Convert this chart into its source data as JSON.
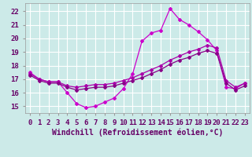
{
  "background_color": "#cceae8",
  "grid_color": "#ffffff",
  "xlabel": "Windchill (Refroidissement éolien,°C)",
  "ylabel_ticks": [
    15,
    16,
    17,
    18,
    19,
    20,
    21,
    22
  ],
  "xticks": [
    0,
    1,
    2,
    3,
    4,
    5,
    6,
    7,
    8,
    9,
    10,
    11,
    12,
    13,
    14,
    15,
    16,
    17,
    18,
    19,
    20,
    21,
    22,
    23
  ],
  "xlim": [
    -0.5,
    23.5
  ],
  "ylim": [
    14.5,
    22.6
  ],
  "s1": [
    17.5,
    17.0,
    16.8,
    16.8,
    16.0,
    15.2,
    14.9,
    15.0,
    15.3,
    15.6,
    16.3,
    17.4,
    19.8,
    20.4,
    20.6,
    22.2,
    21.4,
    21.0,
    20.5,
    19.9,
    19.1,
    16.4,
    16.3,
    16.7
  ],
  "s2": [
    17.4,
    17.0,
    16.8,
    16.8,
    16.5,
    16.4,
    16.5,
    16.6,
    16.6,
    16.7,
    16.9,
    17.1,
    17.4,
    17.7,
    18.0,
    18.4,
    18.7,
    19.0,
    19.2,
    19.5,
    19.3,
    16.9,
    16.4,
    16.7
  ],
  "s3": [
    17.3,
    16.9,
    16.7,
    16.7,
    16.4,
    16.2,
    16.3,
    16.4,
    16.4,
    16.5,
    16.7,
    16.9,
    17.1,
    17.4,
    17.7,
    18.1,
    18.4,
    18.6,
    18.9,
    19.1,
    18.9,
    16.7,
    16.2,
    16.5
  ],
  "colors": [
    "#cc00cc",
    "#aa00aa",
    "#880088"
  ],
  "xlabel_fontsize": 7,
  "tick_fontsize": 6.5,
  "figsize": [
    3.2,
    2.0
  ],
  "dpi": 100
}
